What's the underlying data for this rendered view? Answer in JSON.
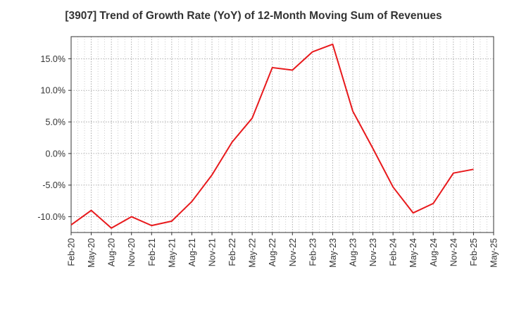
{
  "chart_data": {
    "type": "line",
    "title": "[3907]  Trend of Growth Rate (YoY) of 12-Month Moving Sum of Revenues",
    "xlabel": "",
    "ylabel": "",
    "ylim": [
      -12.5,
      18.5
    ],
    "y_ticks": [
      -10,
      -5,
      0,
      5,
      10,
      15
    ],
    "y_tick_labels": [
      "-10.0%",
      "-5.0%",
      "0.0%",
      "5.0%",
      "10.0%",
      "15.0%"
    ],
    "x_tick_labels": [
      "Feb-20",
      "May-20",
      "Aug-20",
      "Nov-20",
      "Feb-21",
      "May-21",
      "Aug-21",
      "Nov-21",
      "Feb-22",
      "May-22",
      "Aug-22",
      "Nov-22",
      "Feb-23",
      "May-23",
      "Aug-23",
      "Nov-23",
      "Feb-24",
      "May-24",
      "Aug-24",
      "Nov-24",
      "Feb-25",
      "May-25"
    ],
    "grid": true,
    "series": [
      {
        "color": "#e8191c",
        "x": [
          "Feb-20",
          "May-20",
          "Aug-20",
          "Nov-20",
          "Feb-21",
          "May-21",
          "Aug-21",
          "Nov-21",
          "Feb-22",
          "May-22",
          "Aug-22",
          "Nov-22",
          "Feb-23",
          "May-23",
          "Aug-23",
          "Nov-23",
          "Feb-24",
          "May-24",
          "Aug-24",
          "Nov-24",
          "Feb-25"
        ],
        "values": [
          -11.3,
          -9.0,
          -11.8,
          -10.0,
          -11.4,
          -10.7,
          -7.6,
          -3.4,
          1.8,
          5.6,
          13.6,
          13.2,
          16.1,
          17.3,
          6.7,
          0.8,
          -5.3,
          -9.4,
          -7.9,
          -3.1,
          -2.5
        ]
      }
    ]
  }
}
